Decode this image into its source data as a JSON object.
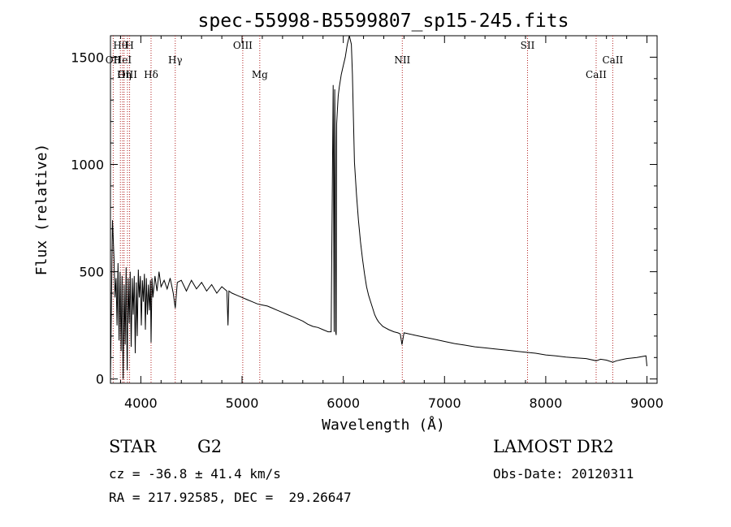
{
  "chart_data": {
    "type": "line",
    "title": "spec-55998-B5599807_sp15-245.fits",
    "xlabel": "Wavelength (Å)",
    "ylabel": "Flux (relative)",
    "xlim": [
      3700,
      9100
    ],
    "ylim": [
      -20,
      1600
    ],
    "xticks": [
      4000,
      5000,
      6000,
      7000,
      8000,
      9000
    ],
    "yticks": [
      0,
      500,
      1000,
      1500
    ],
    "grid": false,
    "line_color": "#000000",
    "marker_color": "#b22222",
    "series": [
      {
        "x": [
          3700,
          3720,
          3735,
          3745,
          3755,
          3765,
          3775,
          3785,
          3795,
          3805,
          3815,
          3825,
          3835,
          3845,
          3855,
          3865,
          3875,
          3885,
          3895,
          3905,
          3915,
          3925,
          3935,
          3945,
          3955,
          3965,
          3975,
          3985,
          3995,
          4005,
          4015,
          4025,
          4035,
          4045,
          4055,
          4065,
          4075,
          4085,
          4095,
          4101,
          4110,
          4120,
          4140,
          4160,
          4180,
          4200,
          4230,
          4260,
          4290,
          4320,
          4340,
          4360,
          4400,
          4450,
          4500,
          4550,
          4600,
          4650,
          4700,
          4750,
          4800,
          4850,
          4861,
          4870,
          4900,
          4950,
          5000,
          5050,
          5100,
          5150,
          5200,
          5250,
          5300,
          5350,
          5400,
          5450,
          5500,
          5550,
          5600,
          5650,
          5700,
          5750,
          5800,
          5850,
          5880,
          5900,
          5910,
          5915,
          5920,
          5925,
          5930,
          5935,
          5940,
          5945,
          5950,
          5960,
          5980,
          6000,
          6020,
          6040,
          6060,
          6080,
          6090,
          6100,
          6110,
          6130,
          6150,
          6170,
          6190,
          6210,
          6230,
          6250,
          6270,
          6290,
          6310,
          6330,
          6350,
          6370,
          6390,
          6410,
          6450,
          6500,
          6540,
          6563,
          6580,
          6600,
          6700,
          6800,
          6900,
          7000,
          7100,
          7200,
          7300,
          7400,
          7500,
          7600,
          7700,
          7800,
          7900,
          8000,
          8100,
          8200,
          8300,
          8400,
          8498,
          8542,
          8600,
          8662,
          8700,
          8800,
          8900,
          8990,
          9000
        ],
        "y": [
          0,
          740,
          560,
          380,
          470,
          250,
          540,
          180,
          500,
          130,
          480,
          0,
          440,
          160,
          520,
          40,
          470,
          260,
          500,
          150,
          470,
          300,
          480,
          120,
          450,
          200,
          510,
          380,
          480,
          250,
          460,
          360,
          490,
          230,
          470,
          300,
          440,
          320,
          460,
          170,
          470,
          380,
          480,
          410,
          500,
          430,
          460,
          420,
          470,
          400,
          330,
          450,
          460,
          410,
          460,
          420,
          450,
          410,
          440,
          400,
          430,
          410,
          250,
          410,
          400,
          390,
          380,
          370,
          360,
          350,
          345,
          340,
          330,
          320,
          310,
          300,
          290,
          280,
          270,
          255,
          245,
          240,
          230,
          220,
          220,
          1370,
          220,
          1350,
          1100,
          220,
          205,
          1190,
          1240,
          1280,
          1320,
          1360,
          1420,
          1460,
          1500,
          1560,
          1610,
          1560,
          1420,
          1220,
          1010,
          860,
          740,
          640,
          560,
          490,
          430,
          390,
          360,
          330,
          300,
          280,
          265,
          255,
          245,
          240,
          230,
          220,
          215,
          210,
          160,
          215,
          205,
          195,
          185,
          175,
          165,
          158,
          150,
          145,
          140,
          135,
          130,
          125,
          120,
          112,
          108,
          102,
          98,
          95,
          85,
          92,
          88,
          78,
          85,
          95,
          100,
          108,
          60
        ]
      }
    ],
    "line_markers": [
      {
        "label": "Hθ",
        "x": 3798,
        "row": 0
      },
      {
        "label": "H",
        "x": 3889,
        "row": 0
      },
      {
        "label": "OII",
        "x": 3727,
        "row": 1
      },
      {
        "label": "HeI",
        "x": 3820,
        "row": 1
      },
      {
        "label": "OIII",
        "x": 3868,
        "row": 2
      },
      {
        "label": "Hη",
        "x": 3835,
        "row": 2
      },
      {
        "label": "Hδ",
        "x": 4101,
        "row": 2
      },
      {
        "label": "Hγ",
        "x": 4340,
        "row": 1
      },
      {
        "label": "OIII",
        "x": 5007,
        "row": 0
      },
      {
        "label": "Mg",
        "x": 5175,
        "row": 2
      },
      {
        "label": "NII",
        "x": 6583,
        "row": 1
      },
      {
        "label": "SII",
        "x": 7820,
        "row": 0
      },
      {
        "label": "CaII",
        "x": 8498,
        "row": 2
      },
      {
        "label": "CaII",
        "x": 8662,
        "row": 1
      }
    ]
  },
  "info": {
    "object_class": "STAR",
    "subclass": "G2",
    "survey": "LAMOST DR2",
    "redshift": "cz = -36.8 ± 41.4 km/s",
    "obs_date": "Obs-Date: 20120311",
    "coords": "RA = 217.92585, DEC =  29.26647"
  }
}
